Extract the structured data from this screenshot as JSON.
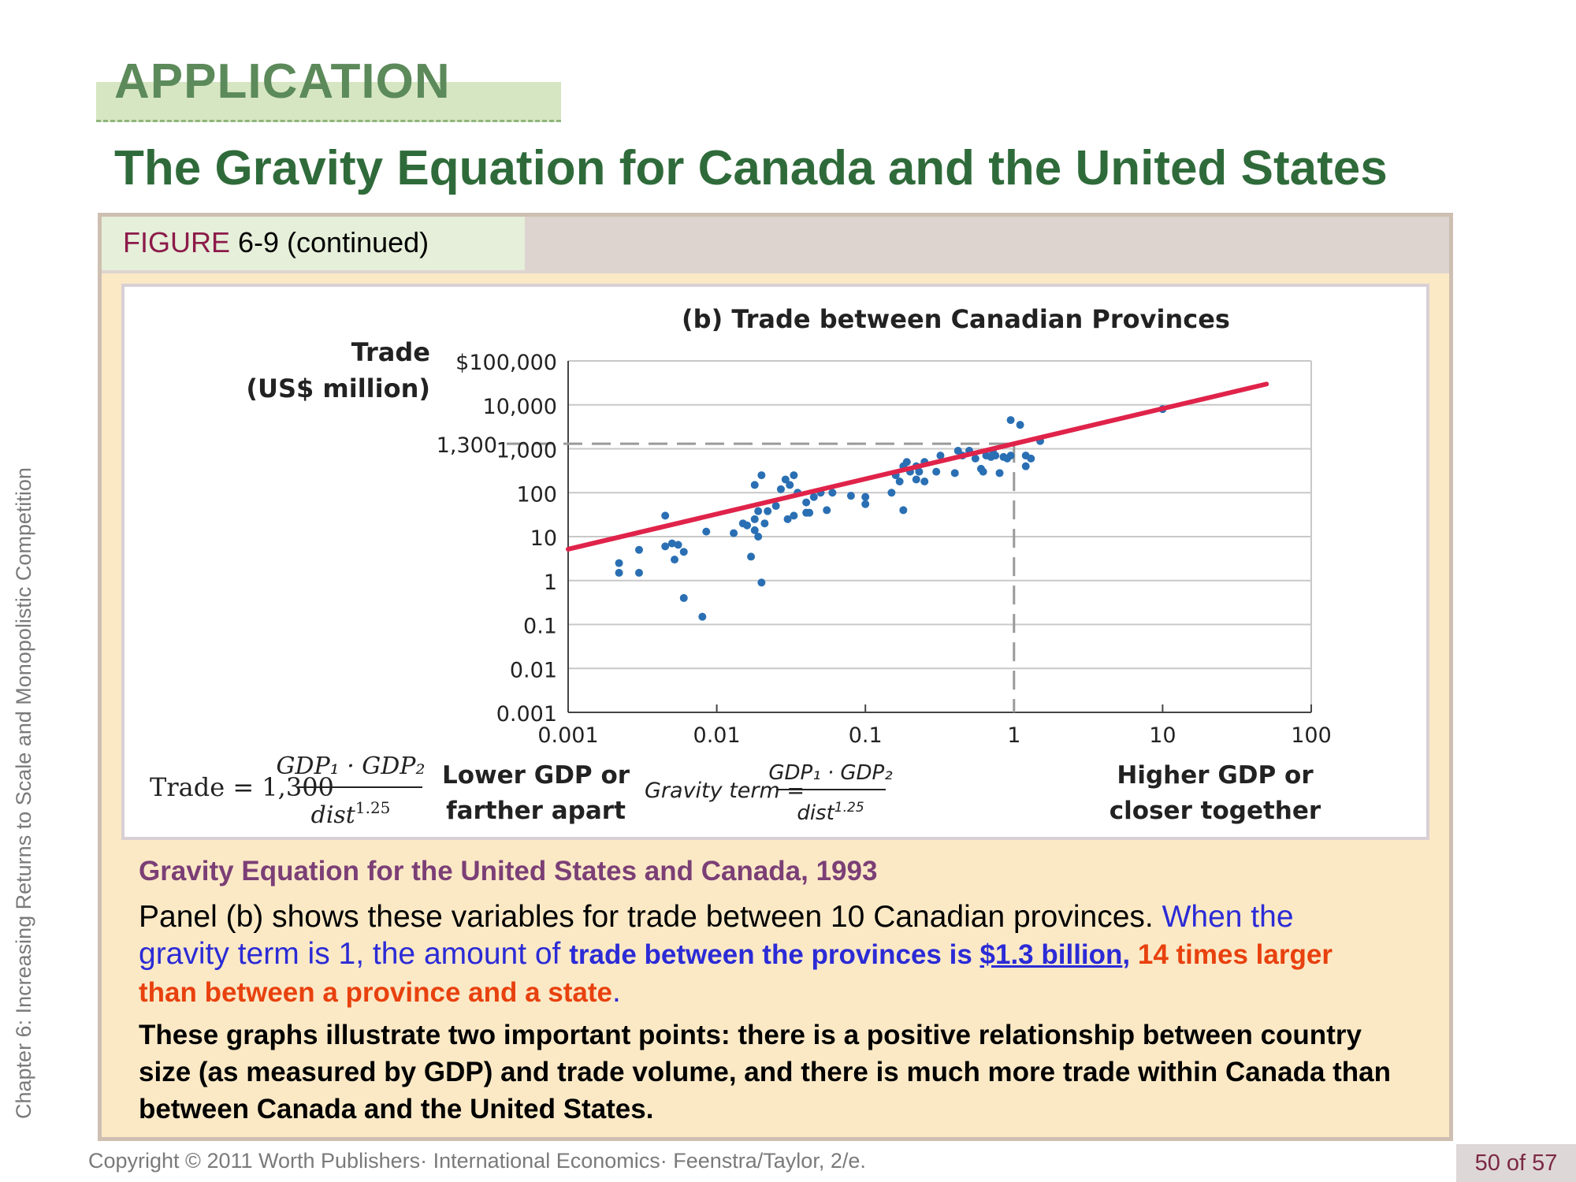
{
  "side_label": "Chapter 6: Increasing Returns to Scale and Monopolistic Competition",
  "header": {
    "application": "APPLICATION",
    "title": "The Gravity Equation for Canada and the United States"
  },
  "figure": {
    "label_word": "FIGURE",
    "label_rest": " 6-9 (continued)"
  },
  "chart_data": {
    "type": "scatter",
    "title": "(b) Trade between Canadian Provinces",
    "ylabel_line1": "Trade",
    "ylabel_line2": "(US$ million)",
    "x_scale": "log",
    "y_scale": "log",
    "xlim": [
      0.001,
      100
    ],
    "ylim": [
      0.001,
      100000
    ],
    "x_ticks": [
      0.001,
      0.01,
      0.1,
      1,
      10,
      100
    ],
    "x_tick_labels": [
      "0.001",
      "0.01",
      "0.1",
      "1",
      "10",
      "100"
    ],
    "y_ticks": [
      0.001,
      0.01,
      0.1,
      1,
      10,
      100,
      1000,
      10000,
      100000
    ],
    "y_tick_labels": [
      "0.001",
      "0.01",
      "0.1",
      "1",
      "10",
      "100",
      "1,000",
      "10,000",
      "$100,000"
    ],
    "reference_label": "1,300",
    "reference": {
      "x": 1,
      "y": 1300
    },
    "fit_line": {
      "coefficient": 1300,
      "slope": 0.8,
      "x_range": [
        0.001,
        50
      ],
      "color": "#e0234a"
    },
    "point_color": "#2a6fb3",
    "points": [
      [
        0.0022,
        2.5
      ],
      [
        0.0022,
        1.5
      ],
      [
        0.003,
        1.5
      ],
      [
        0.003,
        5
      ],
      [
        0.0045,
        30
      ],
      [
        0.0045,
        6
      ],
      [
        0.005,
        7
      ],
      [
        0.0052,
        3
      ],
      [
        0.0055,
        6.5
      ],
      [
        0.006,
        4.5
      ],
      [
        0.006,
        0.4
      ],
      [
        0.008,
        0.15
      ],
      [
        0.0085,
        13
      ],
      [
        0.013,
        12
      ],
      [
        0.015,
        20
      ],
      [
        0.016,
        18
      ],
      [
        0.017,
        3.5
      ],
      [
        0.018,
        25
      ],
      [
        0.018,
        150
      ],
      [
        0.018,
        14
      ],
      [
        0.019,
        10
      ],
      [
        0.019,
        38
      ],
      [
        0.02,
        250
      ],
      [
        0.02,
        0.9
      ],
      [
        0.021,
        20
      ],
      [
        0.022,
        38
      ],
      [
        0.025,
        50
      ],
      [
        0.027,
        120
      ],
      [
        0.029,
        200
      ],
      [
        0.03,
        25
      ],
      [
        0.031,
        150
      ],
      [
        0.033,
        250
      ],
      [
        0.033,
        30
      ],
      [
        0.035,
        100
      ],
      [
        0.04,
        60
      ],
      [
        0.04,
        35
      ],
      [
        0.042,
        35
      ],
      [
        0.045,
        80
      ],
      [
        0.05,
        100
      ],
      [
        0.055,
        40
      ],
      [
        0.06,
        100
      ],
      [
        0.08,
        85
      ],
      [
        0.1,
        80
      ],
      [
        0.1,
        55
      ],
      [
        0.15,
        100
      ],
      [
        0.16,
        250
      ],
      [
        0.17,
        180
      ],
      [
        0.18,
        400
      ],
      [
        0.18,
        40
      ],
      [
        0.19,
        500
      ],
      [
        0.2,
        300
      ],
      [
        0.22,
        400
      ],
      [
        0.22,
        200
      ],
      [
        0.23,
        300
      ],
      [
        0.25,
        180
      ],
      [
        0.25,
        500
      ],
      [
        0.3,
        300
      ],
      [
        0.32,
        700
      ],
      [
        0.4,
        280
      ],
      [
        0.42,
        900
      ],
      [
        0.45,
        700
      ],
      [
        0.5,
        900
      ],
      [
        0.55,
        600
      ],
      [
        0.6,
        350
      ],
      [
        0.62,
        300
      ],
      [
        0.65,
        700
      ],
      [
        0.7,
        650
      ],
      [
        0.72,
        900
      ],
      [
        0.75,
        700
      ],
      [
        0.8,
        280
      ],
      [
        0.85,
        650
      ],
      [
        0.9,
        600
      ],
      [
        0.95,
        700
      ],
      [
        0.95,
        4500
      ],
      [
        1.1,
        3500
      ],
      [
        1.2,
        700
      ],
      [
        1.2,
        400
      ],
      [
        1.3,
        600
      ],
      [
        1.5,
        1500
      ],
      [
        10,
        8000
      ]
    ],
    "formula_left": {
      "lhs": "Trade = 1,300",
      "num": "GDP₁ · GDP₂",
      "den": "dist",
      "exp": "1.25"
    },
    "axis_left_label": [
      "Lower GDP or",
      "farther apart"
    ],
    "axis_mid_label": {
      "lhs": "Gravity term =",
      "num": "GDP₁ · GDP₂",
      "den": "dist",
      "exp": "1.25"
    },
    "axis_right_label": [
      "Higher GDP or",
      "closer together"
    ]
  },
  "caption": {
    "title": "Gravity Equation for the United States and Canada, 1993",
    "p1_a": "Panel (b) shows these variables for trade between 10 Canadian provinces. ",
    "p1_b": "When the gravity term is 1, the amount of ",
    "p1_c": "trade between the provinces is ",
    "p1_d": "$1.3 billion",
    "p1_e": ", ",
    "p1_f": "14 times larger than between a province and a state",
    "p1_g": ".",
    "p2": "These graphs illustrate two important points: there is a positive relationship between country size (as measured by GDP) and trade volume, and there is much more trade within Canada than between Canada and the United States."
  },
  "footer": {
    "copyright": "Copyright © 2011 Worth Publishers· International Economics· Feenstra/Taylor, 2/e.",
    "page": "50 of 57"
  }
}
